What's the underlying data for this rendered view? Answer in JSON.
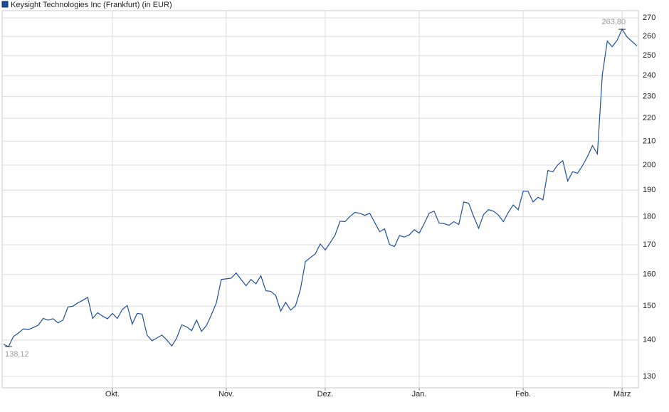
{
  "chart_data": {
    "type": "line",
    "series": [
      {
        "name": "Keysight Technologies Inc (Frankfurt) (in EUR)",
        "color": "#1c4f9e",
        "values": [
          138.8,
          138.12,
          141,
          142,
          143.2,
          143,
          143.6,
          144.3,
          146.3,
          145.8,
          146.2,
          145,
          145.8,
          149.7,
          150,
          151,
          151.8,
          152.7,
          146.3,
          148,
          147,
          146.2,
          147.8,
          146.3,
          149,
          150.2,
          144.6,
          147.8,
          147.6,
          141.4,
          139.8,
          140.6,
          141.4,
          140,
          138.3,
          140.6,
          144.4,
          143.8,
          142.7,
          145.8,
          142.5,
          144.2,
          147.4,
          151,
          158.4,
          158.6,
          158.8,
          160.5,
          158.4,
          156.4,
          158.4,
          157,
          159.6,
          154.8,
          154.6,
          153.3,
          148.5,
          151.2,
          148.8,
          150.1,
          155.3,
          164.3,
          165.6,
          166.9,
          170.3,
          168.2,
          170.7,
          173.4,
          178.4,
          178.2,
          180.1,
          181.6,
          181.3,
          180.5,
          181.3,
          177.9,
          174.6,
          175.6,
          170.1,
          169.4,
          173.2,
          172.7,
          173.5,
          175.3,
          174.1,
          177.5,
          181.3,
          182.1,
          177.7,
          177.5,
          176.9,
          178.2,
          177.2,
          185.5,
          185,
          180.1,
          175.8,
          180.8,
          182.6,
          182.1,
          180.6,
          178.2,
          181.6,
          184.4,
          182.6,
          189.6,
          189.6,
          185.5,
          187.3,
          186.3,
          197.8,
          197.3,
          200.1,
          201.8,
          193.6,
          197.3,
          196.7,
          199.8,
          203.5,
          208.1,
          204.6,
          240.5,
          257.5,
          254.6,
          258,
          263.8,
          259.7,
          257.3,
          255
        ]
      }
    ],
    "xlim": [
      0,
      128
    ],
    "xticks": [
      {
        "value": 22,
        "label": "Okt."
      },
      {
        "value": 45,
        "label": "Nov."
      },
      {
        "value": 65,
        "label": "Dez."
      },
      {
        "value": 84,
        "label": "Jan."
      },
      {
        "value": 105,
        "label": "Feb."
      },
      {
        "value": 125,
        "label": "März"
      }
    ],
    "ylim": [
      127,
      274
    ],
    "yticks": [
      130,
      140,
      150,
      160,
      170,
      180,
      190,
      200,
      210,
      220,
      230,
      240,
      250,
      260,
      270
    ],
    "log_scale": true,
    "grid": true,
    "annotations": [
      {
        "value": 138.12,
        "label": "138,12"
      },
      {
        "value": 263.8,
        "label": "263,80"
      }
    ]
  }
}
